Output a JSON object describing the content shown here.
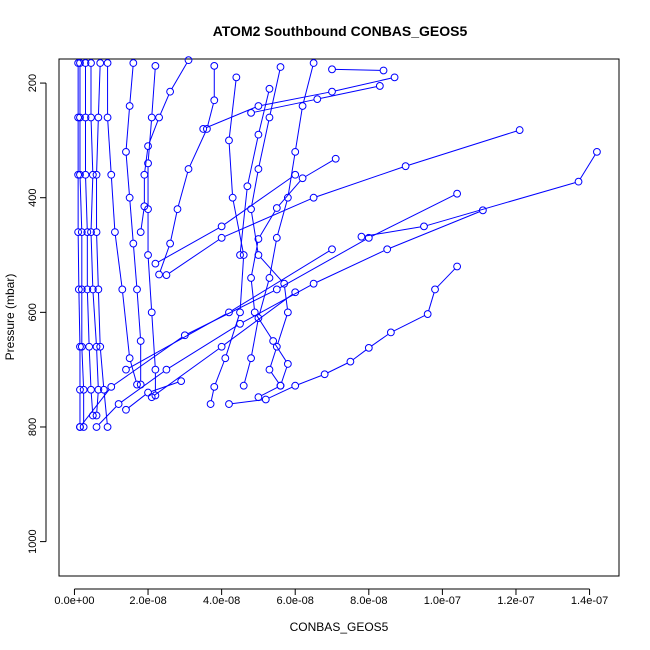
{
  "chart_data": {
    "type": "line",
    "title": "ATOM2 Southbound CONBAS_GEOS5",
    "xlabel": "CONBAS_GEOS5",
    "ylabel": "Pressure (mbar)",
    "xlim": [
      -4.2e-09,
      1.48e-07
    ],
    "ylim": [
      1060,
      158
    ],
    "x_ticks": [
      {
        "value": 0,
        "label": "0.0e+00"
      },
      {
        "value": 2e-08,
        "label": "2.0e-08"
      },
      {
        "value": 4e-08,
        "label": "4.0e-08"
      },
      {
        "value": 6e-08,
        "label": "6.0e-08"
      },
      {
        "value": 8e-08,
        "label": "8.0e-08"
      },
      {
        "value": 1e-07,
        "label": "1.0e-07"
      },
      {
        "value": 1.2e-07,
        "label": "1.2e-07"
      },
      {
        "value": 1.4e-07,
        "label": "1.4e-07"
      }
    ],
    "y_ticks": [
      {
        "value": 200,
        "label": "200"
      },
      {
        "value": 400,
        "label": "400"
      },
      {
        "value": 600,
        "label": "600"
      },
      {
        "value": 800,
        "label": "800"
      },
      {
        "value": 1000,
        "label": "1000"
      }
    ],
    "grid": false,
    "series_color": "#0000ff",
    "marker": "open-circle",
    "series": [
      {
        "points": [
          [
            1.42e-07,
            320
          ],
          [
            1.37e-07,
            372
          ],
          [
            9.5e-08,
            450
          ],
          [
            7.8e-08,
            468
          ]
        ]
      },
      {
        "points": [
          [
            1.21e-07,
            282
          ],
          [
            9e-08,
            345
          ],
          [
            6.5e-08,
            400
          ],
          [
            4e-08,
            470
          ],
          [
            2.5e-08,
            535
          ]
        ]
      },
      {
        "points": [
          [
            1.04e-07,
            520
          ],
          [
            9.8e-08,
            560
          ],
          [
            9.6e-08,
            603
          ],
          [
            8.6e-08,
            635
          ],
          [
            8e-08,
            662
          ],
          [
            7.5e-08,
            686
          ],
          [
            6.8e-08,
            708
          ],
          [
            6e-08,
            728
          ],
          [
            5.2e-08,
            752
          ],
          [
            4.2e-08,
            760
          ]
        ]
      },
      {
        "points": [
          [
            1.04e-07,
            393
          ],
          [
            8e-08,
            470
          ],
          [
            5.5e-08,
            560
          ],
          [
            3e-08,
            640
          ],
          [
            1e-08,
            730
          ],
          [
            1.5e-09,
            800
          ]
        ]
      },
      {
        "points": [
          [
            1.11e-07,
            422
          ],
          [
            8.5e-08,
            490
          ],
          [
            6.5e-08,
            550
          ],
          [
            4.5e-08,
            620
          ],
          [
            2.5e-08,
            700
          ],
          [
            1.2e-08,
            760
          ],
          [
            6e-09,
            800
          ]
        ]
      },
      {
        "points": [
          [
            8.7e-08,
            190
          ],
          [
            7e-08,
            215
          ],
          [
            5e-08,
            240
          ],
          [
            3.5e-08,
            280
          ]
        ]
      },
      {
        "points": [
          [
            7e-08,
            176
          ],
          [
            8.4e-08,
            178
          ]
        ]
      },
      {
        "points": [
          [
            8.3e-08,
            205
          ],
          [
            6.6e-08,
            228
          ],
          [
            4.8e-08,
            252
          ]
        ]
      },
      {
        "points": [
          [
            7.1e-08,
            332
          ],
          [
            6.2e-08,
            366
          ],
          [
            5.5e-08,
            418
          ],
          [
            5e-08,
            472
          ],
          [
            4.8e-08,
            540
          ],
          [
            4.9e-08,
            600
          ],
          [
            5.4e-08,
            650
          ],
          [
            5.8e-08,
            690
          ],
          [
            5.6e-08,
            728
          ],
          [
            5e-08,
            748
          ]
        ]
      },
      {
        "points": [
          [
            6.5e-08,
            165
          ],
          [
            6.2e-08,
            240
          ],
          [
            6e-08,
            320
          ],
          [
            5.8e-08,
            400
          ],
          [
            5.5e-08,
            470
          ],
          [
            5.3e-08,
            540
          ],
          [
            5e-08,
            610
          ],
          [
            4.8e-08,
            680
          ],
          [
            4.6e-08,
            728
          ]
        ]
      },
      {
        "points": [
          [
            5.6e-08,
            172
          ],
          [
            5.3e-08,
            260
          ],
          [
            5e-08,
            350
          ],
          [
            4.8e-08,
            420
          ],
          [
            5e-08,
            500
          ],
          [
            5.7e-08,
            550
          ],
          [
            5.8e-08,
            600
          ],
          [
            5.5e-08,
            660
          ],
          [
            5.3e-08,
            700
          ],
          [
            5.6e-08,
            728
          ]
        ]
      },
      {
        "points": [
          [
            4.4e-08,
            190
          ],
          [
            4.2e-08,
            300
          ],
          [
            4.3e-08,
            400
          ],
          [
            4.6e-08,
            500
          ],
          [
            4.5e-08,
            600
          ],
          [
            4.1e-08,
            680
          ],
          [
            3.8e-08,
            730
          ],
          [
            3.7e-08,
            760
          ]
        ]
      },
      {
        "points": [
          [
            3.8e-08,
            170
          ],
          [
            3.8e-08,
            230
          ],
          [
            3.6e-08,
            280
          ],
          [
            3.1e-08,
            350
          ],
          [
            2.8e-08,
            420
          ],
          [
            2.6e-08,
            480
          ],
          [
            2.3e-08,
            534
          ]
        ]
      },
      {
        "points": [
          [
            3.1e-08,
            160
          ],
          [
            2.6e-08,
            215
          ],
          [
            2.3e-08,
            260
          ],
          [
            2e-08,
            310
          ],
          [
            1.9e-08,
            360
          ],
          [
            1.9e-08,
            415
          ],
          [
            1.8e-08,
            460
          ]
        ]
      },
      {
        "points": [
          [
            2.2e-08,
            170
          ],
          [
            2.1e-08,
            260
          ],
          [
            2e-08,
            340
          ],
          [
            2e-08,
            420
          ],
          [
            2e-08,
            500
          ],
          [
            2.1e-08,
            600
          ],
          [
            2.2e-08,
            700
          ],
          [
            2.2e-08,
            745
          ]
        ]
      },
      {
        "points": [
          [
            1.6e-08,
            165
          ],
          [
            1.5e-08,
            240
          ],
          [
            1.4e-08,
            320
          ],
          [
            1.5e-08,
            400
          ],
          [
            1.6e-08,
            480
          ],
          [
            1.7e-08,
            560
          ],
          [
            1.8e-08,
            650
          ],
          [
            1.8e-08,
            726
          ]
        ]
      },
      {
        "points": [
          [
            9e-09,
            165
          ],
          [
            9e-09,
            260
          ],
          [
            1e-08,
            360
          ],
          [
            1.1e-08,
            460
          ],
          [
            1.3e-08,
            560
          ],
          [
            1.5e-08,
            680
          ],
          [
            1.7e-08,
            726
          ]
        ]
      },
      {
        "points": [
          [
            7e-09,
            165
          ],
          [
            6.5e-09,
            260
          ],
          [
            6e-09,
            360
          ],
          [
            6e-09,
            460
          ],
          [
            6.5e-09,
            560
          ],
          [
            7e-09,
            660
          ],
          [
            8e-09,
            735
          ],
          [
            9e-09,
            800
          ]
        ]
      },
      {
        "points": [
          [
            4.5e-09,
            165
          ],
          [
            4.5e-09,
            260
          ],
          [
            5e-09,
            360
          ],
          [
            4.5e-09,
            460
          ],
          [
            5e-09,
            560
          ],
          [
            6e-09,
            660
          ],
          [
            6.5e-09,
            735
          ],
          [
            6e-09,
            780
          ]
        ]
      },
      {
        "points": [
          [
            3e-09,
            165
          ],
          [
            3e-09,
            260
          ],
          [
            3e-09,
            360
          ],
          [
            3.5e-09,
            460
          ],
          [
            3.5e-09,
            560
          ],
          [
            4e-09,
            660
          ],
          [
            4.5e-09,
            735
          ],
          [
            5e-09,
            780
          ]
        ]
      },
      {
        "points": [
          [
            1.5e-09,
            165
          ],
          [
            1.5e-09,
            260
          ],
          [
            1.5e-09,
            360
          ],
          [
            2e-09,
            460
          ],
          [
            2e-09,
            560
          ],
          [
            2e-09,
            660
          ],
          [
            2.5e-09,
            735
          ],
          [
            2.5e-09,
            800
          ]
        ]
      },
      {
        "points": [
          [
            1e-09,
            165
          ],
          [
            1e-09,
            260
          ],
          [
            1e-09,
            360
          ],
          [
            1e-09,
            460
          ],
          [
            1.2e-09,
            560
          ],
          [
            1.5e-09,
            660
          ],
          [
            1.5e-09,
            735
          ],
          [
            1.5e-09,
            800
          ]
        ]
      },
      {
        "points": [
          [
            5.3e-08,
            210
          ],
          [
            5e-08,
            290
          ],
          [
            4.7e-08,
            380
          ],
          [
            4.5e-08,
            500
          ]
        ]
      },
      {
        "points": [
          [
            6e-08,
            360
          ],
          [
            4e-08,
            450
          ],
          [
            2.2e-08,
            515
          ]
        ]
      },
      {
        "points": [
          [
            7e-08,
            490
          ],
          [
            4.2e-08,
            600
          ],
          [
            1.4e-08,
            700
          ]
        ]
      },
      {
        "points": [
          [
            6e-08,
            565
          ],
          [
            4e-08,
            660
          ],
          [
            2.1e-08,
            748
          ]
        ]
      },
      {
        "points": [
          [
            2.9e-08,
            720
          ],
          [
            2e-08,
            740
          ],
          [
            1.4e-08,
            770
          ]
        ]
      }
    ]
  }
}
